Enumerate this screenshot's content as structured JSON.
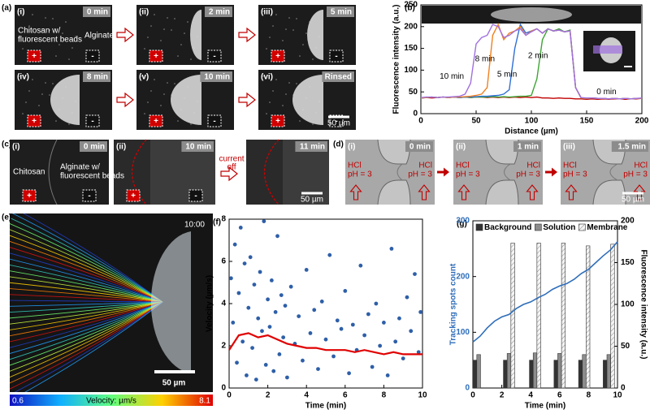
{
  "panels": {
    "a": {
      "label": "(a)",
      "frames": [
        {
          "label": "(i)",
          "time": "0 min"
        },
        {
          "label": "(ii)",
          "time": "2 min"
        },
        {
          "label": "(iii)",
          "time": "5 min"
        },
        {
          "label": "(iv)",
          "time": "8 min"
        },
        {
          "label": "(v)",
          "time": "10 min"
        },
        {
          "label": "(vi)",
          "time": "Rinsed"
        }
      ],
      "left_text": [
        "Chitosan w/",
        "fluorescent beads"
      ],
      "right_text": "Alginate",
      "plus": "+",
      "minus": "-",
      "scale": "50 µm"
    },
    "c": {
      "label": "(c)",
      "frames": [
        {
          "label": "(i)",
          "time": "0 min"
        },
        {
          "label": "(ii)",
          "time": "10 min"
        },
        {
          "time": "11 min"
        }
      ],
      "left_text": "Chitosan",
      "right_text": [
        "Alginate w/",
        "fluorescent beads"
      ],
      "arrow_text": [
        "current",
        "off"
      ],
      "plus": "+",
      "minus": "-",
      "scale": "50 µm"
    },
    "d": {
      "label": "(d)",
      "frames": [
        {
          "label": "(i)",
          "time": "0 min"
        },
        {
          "label": "(ii)",
          "time": "1 min"
        },
        {
          "label": "(iii)",
          "time": "1.5 min"
        }
      ],
      "acid": "HCl",
      "ph": "pH = 3",
      "scale": "50 µm"
    },
    "e": {
      "label": "(e)",
      "time": "10:00",
      "scale": "50 µm",
      "colorbar_min": "0.6",
      "colorbar_label": "Velocity: µm/s",
      "colorbar_max": "8.1"
    }
  },
  "chart_data": [
    {
      "type": "line",
      "panel_label": "(b)",
      "xlabel": "Distance (µm)",
      "ylabel": "Fluorescence intensity (a.u.)",
      "x": [
        0,
        5,
        10,
        15,
        20,
        25,
        30,
        35,
        40,
        45,
        50,
        55,
        60,
        65,
        70,
        75,
        80,
        85,
        90,
        95,
        100,
        105,
        110,
        115,
        120,
        125,
        130,
        135,
        140,
        145,
        150,
        155,
        160,
        165,
        170,
        175,
        180,
        185,
        190,
        195,
        200
      ],
      "xlim": [
        0,
        200
      ],
      "xticks": [
        0,
        50,
        100,
        150,
        200
      ],
      "ylim": [
        0,
        250
      ],
      "yticks": [
        0,
        50,
        100,
        150,
        200,
        250
      ],
      "series": [
        {
          "name": "0 min",
          "color": "#c00000",
          "values": [
            36,
            37,
            36,
            37,
            38,
            37,
            38,
            37,
            38,
            37,
            38,
            38,
            37,
            38,
            37,
            38,
            37,
            38,
            37,
            38,
            37,
            38,
            36,
            36,
            35,
            36,
            35,
            35,
            34,
            34,
            33,
            34,
            33,
            34,
            33,
            34,
            34,
            33,
            34,
            34,
            35
          ]
        },
        {
          "name": "2 min",
          "color": "#3fa535",
          "values": [
            36,
            37,
            38,
            37,
            38,
            37,
            38,
            37,
            38,
            37,
            38,
            38,
            38,
            39,
            38,
            39,
            38,
            39,
            40,
            40,
            42,
            80,
            170,
            195,
            190,
            195,
            188,
            192,
            60,
            36,
            35,
            36,
            35,
            35,
            34,
            35,
            34,
            35,
            34,
            35,
            35
          ]
        },
        {
          "name": "5 min",
          "color": "#2f6fd6",
          "values": [
            36,
            37,
            38,
            37,
            38,
            37,
            38,
            37,
            38,
            38,
            39,
            40,
            40,
            41,
            42,
            45,
            55,
            150,
            205,
            185,
            190,
            195,
            185,
            195,
            190,
            192,
            188,
            190,
            60,
            36,
            35,
            36,
            35,
            35,
            34,
            35,
            34,
            35,
            34,
            35,
            35
          ]
        },
        {
          "name": "8 min",
          "color": "#f08020",
          "values": [
            36,
            37,
            38,
            37,
            38,
            37,
            38,
            38,
            39,
            40,
            42,
            45,
            60,
            180,
            205,
            170,
            185,
            190,
            200,
            180,
            190,
            195,
            185,
            195,
            190,
            192,
            188,
            190,
            60,
            36,
            35,
            36,
            35,
            35,
            34,
            35,
            34,
            35,
            34,
            35,
            35
          ]
        },
        {
          "name": "10 min",
          "color": "#a070e0",
          "values": [
            37,
            38,
            38,
            37,
            38,
            38,
            39,
            40,
            45,
            70,
            160,
            175,
            180,
            205,
            200,
            175,
            180,
            190,
            195,
            180,
            188,
            195,
            185,
            195,
            190,
            192,
            188,
            190,
            60,
            37,
            36,
            36,
            35,
            35,
            34,
            35,
            34,
            35,
            34,
            35,
            36
          ]
        }
      ]
    },
    {
      "type": "scatter",
      "panel_label": "(f)",
      "xlabel": "Time (min)",
      "ylabel": "Velocity (µm/s)",
      "xlim": [
        0,
        10
      ],
      "xticks": [
        0,
        2,
        4,
        6,
        8,
        10
      ],
      "ylim": [
        0,
        8
      ],
      "yticks": [
        0,
        2,
        4,
        6,
        8
      ],
      "series": [
        {
          "type": "scatter",
          "color": "#2e5fa8",
          "x": [
            0.1,
            0.2,
            0.3,
            0.4,
            0.5,
            0.6,
            0.7,
            0.8,
            0.9,
            1.0,
            1.1,
            1.2,
            1.3,
            1.4,
            1.5,
            1.6,
            1.7,
            1.8,
            1.9,
            2.0,
            2.1,
            2.2,
            2.3,
            2.4,
            2.5,
            2.6,
            2.7,
            2.8,
            2.9,
            3.0,
            3.2,
            3.4,
            3.6,
            3.8,
            4.0,
            4.2,
            4.4,
            4.6,
            4.8,
            5.0,
            5.2,
            5.4,
            5.6,
            5.8,
            6.0,
            6.2,
            6.4,
            6.6,
            6.8,
            7.0,
            7.2,
            7.4,
            7.6,
            7.8,
            8.0,
            8.2,
            8.4,
            8.6,
            8.8,
            9.0,
            9.2,
            9.4,
            9.6,
            9.8,
            9.9
          ],
          "values": [
            5.2,
            3.1,
            6.8,
            1.2,
            4.5,
            7.6,
            2.2,
            5.9,
            0.6,
            3.8,
            6.2,
            1.9,
            4.9,
            0.4,
            3.3,
            5.5,
            2.7,
            7.9,
            1.1,
            4.2,
            2.9,
            5.1,
            0.8,
            3.6,
            7.2,
            1.6,
            4.4,
            2.4,
            3.9,
            0.5,
            4.8,
            2.1,
            3.4,
            1.3,
            5.6,
            2.6,
            3.7,
            0.9,
            4.1,
            2.3,
            6.3,
            1.5,
            3.2,
            2.8,
            4.6,
            0.7,
            3.0,
            1.8,
            5.8,
            2.5,
            3.5,
            1.0,
            4.0,
            2.0,
            3.1,
            0.6,
            6.6,
            2.2,
            3.3,
            1.4,
            4.3,
            2.7,
            5.4,
            1.7,
            3.6
          ]
        },
        {
          "type": "line",
          "color": "#e00000",
          "x": [
            0,
            0.5,
            1,
            1.5,
            2,
            2.5,
            3,
            3.5,
            4,
            4.5,
            5,
            5.5,
            6,
            6.5,
            7,
            7.5,
            8,
            8.5,
            9,
            9.5,
            10
          ],
          "values": [
            1.8,
            2.5,
            2.6,
            2.4,
            2.5,
            2.3,
            2.1,
            2.0,
            1.9,
            1.9,
            1.8,
            1.8,
            1.8,
            1.7,
            1.8,
            1.7,
            1.6,
            1.7,
            1.6,
            1.6,
            1.6
          ]
        }
      ]
    },
    {
      "type": "bar",
      "panel_label": "(g)",
      "xlabel": "Time (min)",
      "ylabel": "Tracking spots count",
      "ylabel_color": "#2f6eba",
      "y2label": "Fluorescence intensity (a.u.)",
      "xlim": [
        0,
        10
      ],
      "xticks": [
        0,
        2,
        4,
        6,
        8,
        10
      ],
      "ylim": [
        0,
        300
      ],
      "yticks": [
        0,
        100,
        200,
        300
      ],
      "y2lim": [
        0,
        200
      ],
      "y2ticks": [
        0,
        50,
        100,
        150,
        200
      ],
      "x": [
        0.4,
        2.5,
        4.3,
        6.0,
        7.7,
        9.4
      ],
      "series": [
        {
          "name": "Background",
          "color": "#333333",
          "values": [
            50,
            50,
            50,
            50,
            50,
            50
          ]
        },
        {
          "name": "Solution",
          "color": "#8c8c8c",
          "values": [
            60,
            62,
            63,
            62,
            60,
            60
          ]
        },
        {
          "name": "Membrane",
          "color": "#f0f0f0",
          "pattern": "hatch",
          "values": [
            null,
            260,
            260,
            260,
            255,
            258
          ]
        },
        {
          "type": "line",
          "axis": "y2",
          "color": "#2f6eba",
          "x": [
            0,
            0.5,
            1,
            1.5,
            2,
            2.5,
            3,
            3.5,
            4,
            4.5,
            5,
            5.5,
            6,
            6.5,
            7,
            7.5,
            8,
            8.5,
            9,
            9.5,
            10
          ],
          "values": [
            55,
            62,
            72,
            80,
            85,
            88,
            95,
            100,
            103,
            108,
            112,
            118,
            122,
            125,
            130,
            137,
            142,
            150,
            158,
            165,
            175
          ]
        }
      ]
    }
  ]
}
